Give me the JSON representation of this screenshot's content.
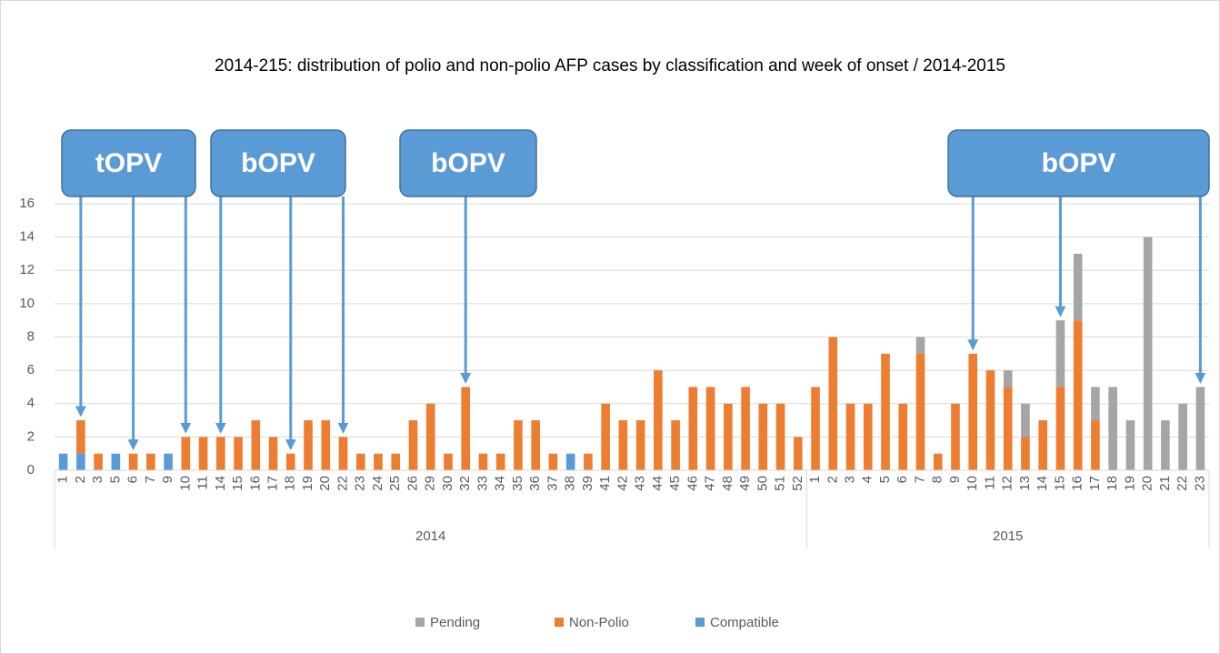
{
  "chart_data": {
    "type": "stacked-bar",
    "title": "2014-215: distribution of polio and non-polio AFP cases by classification and week of onset / 2014-2015",
    "categories": [
      "1",
      "2",
      "3",
      "5",
      "6",
      "7",
      "9",
      "10",
      "11",
      "14",
      "15",
      "16",
      "17",
      "18",
      "19",
      "20",
      "22",
      "23",
      "24",
      "25",
      "26",
      "29",
      "30",
      "32",
      "33",
      "34",
      "35",
      "36",
      "37",
      "38",
      "39",
      "41",
      "42",
      "43",
      "44",
      "45",
      "46",
      "47",
      "48",
      "49",
      "50",
      "51",
      "52",
      "1",
      "2",
      "3",
      "4",
      "5",
      "6",
      "7",
      "8",
      "9",
      "10",
      "11",
      "12",
      "13",
      "14",
      "15",
      "16",
      "17",
      "18",
      "19",
      "20",
      "21",
      "22",
      "23"
    ],
    "category_groups": [
      {
        "name": "2014",
        "size": 43
      },
      {
        "name": "2015",
        "size": 23
      }
    ],
    "series": [
      {
        "name": "Pending",
        "color": "#a5a5a5",
        "values": [
          0,
          0,
          0,
          0,
          0,
          0,
          0,
          0,
          0,
          0,
          0,
          0,
          0,
          0,
          0,
          0,
          0,
          0,
          0,
          0,
          0,
          0,
          0,
          0,
          0,
          0,
          0,
          0,
          0,
          0,
          0,
          0,
          0,
          0,
          0,
          0,
          0,
          0,
          0,
          0,
          0,
          0,
          0,
          0,
          0,
          0,
          0,
          0,
          0,
          1,
          0,
          0,
          0,
          0,
          1,
          2,
          0,
          4,
          4,
          2,
          5,
          3,
          14,
          3,
          4,
          5
        ]
      },
      {
        "name": "Non-Polio",
        "color": "#ed7d31",
        "values": [
          0,
          2,
          1,
          0,
          1,
          1,
          0,
          2,
          2,
          2,
          2,
          3,
          2,
          1,
          3,
          3,
          2,
          1,
          1,
          1,
          3,
          4,
          1,
          5,
          1,
          1,
          3,
          3,
          1,
          0,
          1,
          4,
          3,
          3,
          6,
          3,
          5,
          5,
          4,
          5,
          4,
          4,
          2,
          5,
          8,
          4,
          4,
          7,
          4,
          7,
          1,
          4,
          7,
          6,
          5,
          2,
          3,
          5,
          9,
          3,
          0,
          0,
          0,
          0,
          0,
          0
        ]
      },
      {
        "name": "Compatible",
        "color": "#5b9bd5",
        "values": [
          1,
          1,
          0,
          1,
          0,
          0,
          1,
          0,
          0,
          0,
          0,
          0,
          0,
          0,
          0,
          0,
          0,
          0,
          0,
          0,
          0,
          0,
          0,
          0,
          0,
          0,
          0,
          0,
          0,
          1,
          0,
          0,
          0,
          0,
          0,
          0,
          0,
          0,
          0,
          0,
          0,
          0,
          0,
          0,
          0,
          0,
          0,
          0,
          0,
          0,
          0,
          0,
          0,
          0,
          0,
          0,
          0,
          0,
          0,
          0,
          0,
          0,
          0,
          0,
          0,
          0
        ]
      }
    ],
    "ylim": [
      0,
      16
    ],
    "yticks": [
      0,
      2,
      4,
      6,
      8,
      10,
      12,
      14,
      16
    ],
    "grid": true,
    "legend": "bottom",
    "annotations": [
      {
        "text": "tOPV"
      },
      {
        "text": "bOPV"
      },
      {
        "text": "bOPV"
      },
      {
        "text": "bOPV"
      }
    ]
  }
}
